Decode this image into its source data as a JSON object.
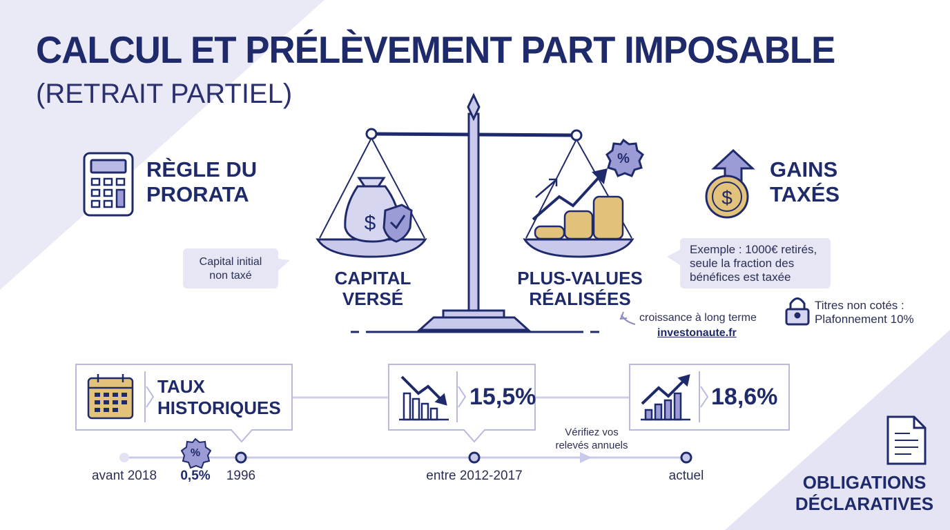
{
  "header": {
    "title": "CALCUL ET PRÉLÈVEMENT PART IMPOSABLE",
    "subtitle": "(RETRAIT PARTIEL)"
  },
  "prorata": {
    "lines": [
      "RÈGLE DU",
      "PRORATA"
    ],
    "note": [
      "Capital initial",
      "non taxé"
    ]
  },
  "balance": {
    "left": [
      "CAPITAL",
      "VERSÉ"
    ],
    "right": [
      "PLUS-VALUES",
      "RÉALISÉES"
    ]
  },
  "gains": {
    "lines": [
      "GAINS",
      "TAXÉS"
    ],
    "example": [
      "Exemple : 1000€ retirés,",
      "seule la fraction des",
      "bénéfices est taxée"
    ],
    "cap": [
      "Titres non cotés :",
      "Plafonnement 10%"
    ]
  },
  "source": {
    "caption": "croissance à long terme",
    "link": "investonaute.fr"
  },
  "rates": {
    "label": [
      "TAUX",
      "HISTORIQUES"
    ],
    "boxes": [
      "15,5%",
      "18,6%"
    ],
    "note": [
      "Vérifiez vos",
      "relevés annuels"
    ]
  },
  "timeline": {
    "labels": [
      "avant 2018",
      "1996",
      "entre 2012-2017",
      "actuel"
    ],
    "badge": "0,5%"
  },
  "declarations": [
    "OBLIGATIONS",
    "DÉCLARATIVES"
  ]
}
